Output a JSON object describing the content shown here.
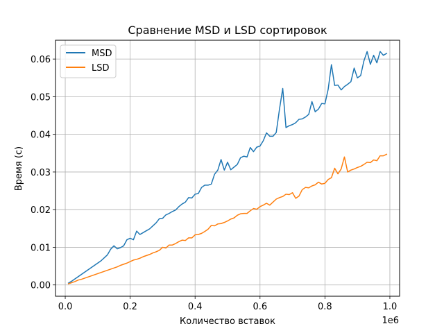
{
  "chart_data": {
    "type": "line",
    "title": "Сравнение MSD и LSD сортировок",
    "xlabel": "Количество вставок",
    "ylabel": "Время (с)",
    "x_offset_label": "1e6",
    "xlim": [
      -0.03,
      1.03
    ],
    "ylim": [
      -0.003,
      0.065
    ],
    "grid": true,
    "legend_position": "upper-left",
    "x_ticks": [
      0.0,
      0.2,
      0.4,
      0.6,
      0.8,
      1.0
    ],
    "x_tick_labels": [
      "0.0",
      "0.2",
      "0.4",
      "0.6",
      "0.8",
      "1.0"
    ],
    "y_ticks": [
      0.0,
      0.01,
      0.02,
      0.03,
      0.04,
      0.05,
      0.06
    ],
    "y_tick_labels": [
      "0.00",
      "0.01",
      "0.02",
      "0.03",
      "0.04",
      "0.05",
      "0.06"
    ],
    "x": [
      0.01,
      0.02,
      0.03,
      0.04,
      0.05,
      0.06,
      0.07,
      0.08,
      0.09,
      0.1,
      0.11,
      0.12,
      0.13,
      0.14,
      0.15,
      0.16,
      0.17,
      0.18,
      0.19,
      0.2,
      0.21,
      0.22,
      0.23,
      0.24,
      0.25,
      0.26,
      0.27,
      0.28,
      0.29,
      0.3,
      0.31,
      0.32,
      0.33,
      0.34,
      0.35,
      0.36,
      0.37,
      0.38,
      0.39,
      0.4,
      0.41,
      0.42,
      0.43,
      0.44,
      0.45,
      0.46,
      0.47,
      0.48,
      0.49,
      0.5,
      0.51,
      0.52,
      0.53,
      0.54,
      0.55,
      0.56,
      0.57,
      0.58,
      0.59,
      0.6,
      0.61,
      0.62,
      0.63,
      0.64,
      0.65,
      0.66,
      0.67,
      0.68,
      0.69,
      0.7,
      0.71,
      0.72,
      0.73,
      0.74,
      0.75,
      0.76,
      0.77,
      0.78,
      0.79,
      0.8,
      0.81,
      0.82,
      0.83,
      0.84,
      0.85,
      0.86,
      0.87,
      0.88,
      0.89,
      0.9,
      0.91,
      0.92,
      0.93,
      0.94,
      0.95,
      0.96,
      0.97,
      0.98,
      0.99
    ],
    "series": [
      {
        "name": "MSD",
        "color": "#1f77b4",
        "values": [
          0.0005,
          0.001,
          0.0016,
          0.0022,
          0.0028,
          0.0034,
          0.004,
          0.0046,
          0.0052,
          0.0058,
          0.0064,
          0.0072,
          0.008,
          0.0095,
          0.0104,
          0.0096,
          0.0099,
          0.0104,
          0.012,
          0.0124,
          0.012,
          0.0143,
          0.0134,
          0.0139,
          0.0144,
          0.0149,
          0.0157,
          0.0165,
          0.0176,
          0.0177,
          0.0186,
          0.019,
          0.0195,
          0.0199,
          0.0208,
          0.0215,
          0.022,
          0.0232,
          0.0231,
          0.0241,
          0.0243,
          0.0259,
          0.0265,
          0.0265,
          0.0268,
          0.0294,
          0.0305,
          0.0333,
          0.0305,
          0.0326,
          0.0306,
          0.0313,
          0.032,
          0.0338,
          0.0342,
          0.034,
          0.0365,
          0.0354,
          0.0366,
          0.0369,
          0.0383,
          0.0404,
          0.0395,
          0.0395,
          0.0405,
          0.0467,
          0.0522,
          0.0418,
          0.0423,
          0.0426,
          0.0431,
          0.044,
          0.0441,
          0.0446,
          0.0453,
          0.0487,
          0.046,
          0.0467,
          0.0482,
          0.0481,
          0.052,
          0.0585,
          0.053,
          0.0531,
          0.0518,
          0.0527,
          0.0533,
          0.054,
          0.0576,
          0.055,
          0.0556,
          0.0595,
          0.062,
          0.0586,
          0.061,
          0.059,
          0.062,
          0.061,
          0.0615
        ]
      },
      {
        "name": "LSD",
        "color": "#ff7f0e",
        "values": [
          0.0003,
          0.0006,
          0.0009,
          0.0013,
          0.0015,
          0.0018,
          0.0021,
          0.0024,
          0.0027,
          0.003,
          0.0033,
          0.0036,
          0.0039,
          0.0042,
          0.0045,
          0.0048,
          0.0052,
          0.0055,
          0.0058,
          0.0062,
          0.0066,
          0.0068,
          0.0071,
          0.0075,
          0.0078,
          0.0081,
          0.0085,
          0.0088,
          0.0092,
          0.01,
          0.0098,
          0.0106,
          0.0106,
          0.011,
          0.0115,
          0.0119,
          0.0118,
          0.0125,
          0.0125,
          0.0133,
          0.0134,
          0.0137,
          0.0142,
          0.0148,
          0.0158,
          0.0157,
          0.0162,
          0.0163,
          0.0166,
          0.017,
          0.0175,
          0.0178,
          0.0185,
          0.0189,
          0.019,
          0.019,
          0.0197,
          0.0203,
          0.0201,
          0.0208,
          0.0212,
          0.0217,
          0.0212,
          0.022,
          0.0228,
          0.0232,
          0.0235,
          0.0241,
          0.024,
          0.0245,
          0.023,
          0.0236,
          0.0253,
          0.0259,
          0.0258,
          0.0263,
          0.0266,
          0.0273,
          0.0268,
          0.027,
          0.028,
          0.0285,
          0.031,
          0.0295,
          0.0308,
          0.034,
          0.03,
          0.0305,
          0.0308,
          0.0312,
          0.0315,
          0.032,
          0.0326,
          0.0325,
          0.0332,
          0.033,
          0.0343,
          0.0343,
          0.0347
        ]
      }
    ]
  }
}
